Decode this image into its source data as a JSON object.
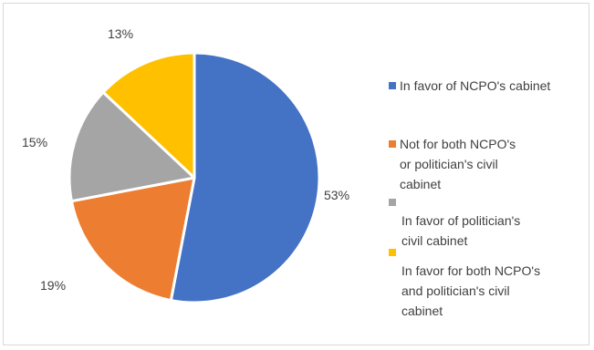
{
  "chart_data": {
    "type": "pie",
    "title": "",
    "categories": [
      "In favor of NCPO's cabinet",
      "Not for both NCPO's or politician's civil cabinet",
      "In favor of politician's civil cabinet",
      "In favor for both NCPO's and politician's civil cabinet"
    ],
    "values": [
      53,
      19,
      15,
      13
    ],
    "value_labels": [
      "53%",
      "19%",
      "15%",
      "13%"
    ],
    "colors": [
      "#4472c4",
      "#ed7d31",
      "#a5a5a5",
      "#ffc000"
    ],
    "legend_placement": "right",
    "start_angle": "top, clockwise"
  },
  "legend": {
    "items": [
      {
        "lines": [
          "In favor of NCPO's cabinet"
        ]
      },
      {
        "lines": [
          "Not for both NCPO's",
          "or politician's civil",
          "cabinet"
        ]
      },
      {
        "lines": [
          "In favor of politician's",
          "civil cabinet"
        ]
      },
      {
        "lines": [
          "In favor for both NCPO's",
          "and politician's civil",
          "cabinet"
        ]
      }
    ]
  }
}
